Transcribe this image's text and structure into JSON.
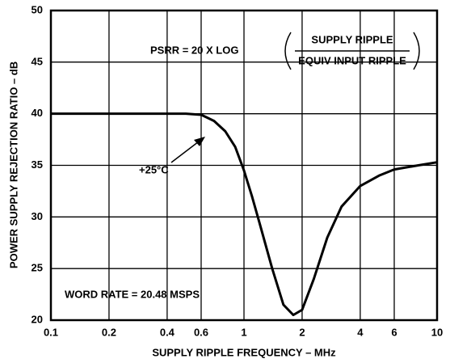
{
  "chart_data": {
    "type": "line",
    "xlabel": "SUPPLY RIPPLE FREQUENCY – MHz",
    "ylabel": "POWER SUPPLY REJECTION RATIO – dB",
    "annotations": {
      "formula_left": "PSRR = 20 X LOG",
      "formula_num": "SUPPLY RIPPLE",
      "formula_den": "EQUIV INPUT RIPPLE",
      "temp": "+25°C",
      "word_rate": "WORD RATE = 20.48 MSPS"
    },
    "x": [
      0.1,
      0.3,
      0.5,
      0.6,
      0.7,
      0.8,
      0.9,
      1,
      1.1,
      1.2,
      1.4,
      1.6,
      1.8,
      2,
      2.3,
      2.7,
      3.2,
      4,
      5,
      6,
      8,
      10
    ],
    "series": [
      {
        "color": "#000000",
        "values": [
          40,
          40,
          40,
          39.9,
          39.3,
          38.3,
          36.8,
          34.5,
          32,
          29.5,
          25,
          21.5,
          20.5,
          21,
          24,
          28,
          31,
          33,
          34,
          34.6,
          35,
          35.3
        ]
      }
    ],
    "xlim": [
      0.1,
      10
    ],
    "xticks": [
      0.1,
      0.2,
      0.4,
      0.6,
      1,
      2,
      4,
      6,
      10
    ],
    "xscale": "log",
    "ylim": [
      20,
      50
    ],
    "yticks": [
      20,
      25,
      30,
      35,
      40,
      45,
      50
    ],
    "grid": true
  }
}
